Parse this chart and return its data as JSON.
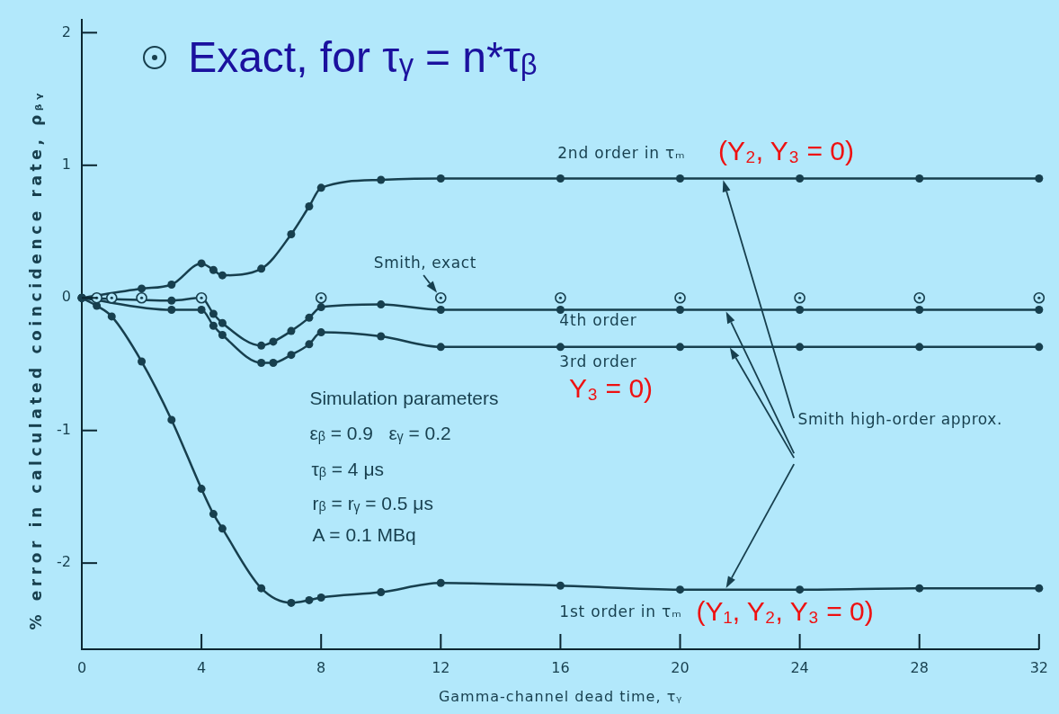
{
  "chart_data": {
    "type": "line",
    "xlabel": "Gamma-channel dead time, τᵧ",
    "ylabel": "% error in calculated coincidence rate, ρᵦᵧ",
    "xlim": [
      0,
      32
    ],
    "xticks": [
      0,
      4,
      8,
      12,
      16,
      20,
      24,
      28,
      32
    ],
    "ylim": [
      -2.65,
      2.1
    ],
    "yticks": [
      -2,
      -1,
      0,
      1,
      2
    ],
    "legend": "top left",
    "marker": "circle",
    "series": [
      {
        "name": "2nd order in τₘ",
        "color": "#173f4e",
        "x": [
          0,
          2,
          3,
          4,
          4.4,
          4.7,
          6,
          7,
          7.6,
          8,
          10,
          12,
          16,
          20,
          24,
          28,
          32
        ],
        "values": [
          0,
          0.07,
          0.1,
          0.26,
          0.21,
          0.17,
          0.22,
          0.48,
          0.69,
          0.83,
          0.89,
          0.9,
          0.9,
          0.9,
          0.9,
          0.9,
          0.9
        ]
      },
      {
        "name": "4th order",
        "color": "#173f4e",
        "x": [
          0,
          3,
          4,
          4.4,
          4.7,
          6,
          6.4,
          7,
          7.6,
          8,
          10,
          12,
          16,
          20,
          24,
          28,
          32
        ],
        "values": [
          0,
          -0.02,
          0,
          -0.12,
          -0.19,
          -0.36,
          -0.33,
          -0.25,
          -0.15,
          -0.07,
          -0.05,
          -0.09,
          -0.09,
          -0.09,
          -0.09,
          -0.09,
          -0.09
        ]
      },
      {
        "name": "3rd order",
        "color": "#173f4e",
        "x": [
          0,
          3,
          4,
          4.4,
          4.7,
          6,
          6.4,
          7,
          7.6,
          8,
          10,
          12,
          16,
          20,
          24,
          28,
          32
        ],
        "values": [
          0,
          -0.09,
          -0.09,
          -0.21,
          -0.28,
          -0.49,
          -0.49,
          -0.43,
          -0.35,
          -0.26,
          -0.29,
          -0.37,
          -0.37,
          -0.37,
          -0.37,
          -0.37,
          -0.37
        ]
      },
      {
        "name": "1st order in τₘ",
        "color": "#173f4e",
        "x": [
          0,
          0.5,
          1,
          2,
          3,
          4,
          4.4,
          4.7,
          6,
          7,
          7.6,
          8,
          10,
          12,
          16,
          20,
          24,
          28,
          32
        ],
        "values": [
          0,
          -0.06,
          -0.14,
          -0.48,
          -0.92,
          -1.44,
          -1.63,
          -1.74,
          -2.19,
          -2.3,
          -2.28,
          -2.26,
          -2.22,
          -2.15,
          -2.17,
          -2.2,
          -2.2,
          -2.19,
          -2.19
        ]
      },
      {
        "name": "Exact, for τᵧ = n*τᵦ",
        "type": "scatter",
        "color": "#173f4e",
        "x": [
          0.5,
          1,
          2,
          4,
          8,
          12,
          16,
          20,
          24,
          28,
          32
        ],
        "values": [
          0,
          0,
          0,
          0,
          0,
          0,
          0,
          0,
          0,
          0,
          0
        ]
      }
    ],
    "annotations": [
      "Smith, exact",
      "Smith high-order approx.",
      "Simulation parameters",
      "εᵦ = 0.9   εᵧ = 0.2",
      "τᵦ = 4 μs",
      "rᵦ = rᵧ = 0.5 μs",
      "A = 0.1 MBq",
      "(Y₂, Y₃ = 0)",
      "Y₃ = 0)",
      "(Y₁, Y₂, Y₃ = 0)"
    ]
  }
}
